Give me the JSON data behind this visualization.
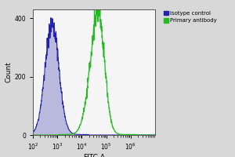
{
  "title": "",
  "xlabel": "FITC-A",
  "ylabel": "Count",
  "xlim_log": [
    2,
    7
  ],
  "ylim": [
    0,
    430
  ],
  "yticks": [
    0,
    200,
    400
  ],
  "background_color": "#d8d8d8",
  "plot_bg_color": "#f5f5f5",
  "isotype_color": "#2222aa",
  "isotype_fill_color": "#8888cc",
  "primary_color": "#22bb22",
  "legend_labels": [
    "Isotype control",
    "Primary antibody"
  ],
  "isotype_peak_log": 2.78,
  "isotype_sigma_log": 0.28,
  "isotype_height": 385,
  "primary_peak_log": 4.55,
  "primary_sigma_log": 0.3,
  "primary_peak2_log": 4.75,
  "primary_sigma2_log": 0.22,
  "primary_height": 265,
  "primary_height2": 190,
  "noise_amplitude": 0.12,
  "figsize": [
    3.0,
    2.0
  ],
  "dpi": 100
}
